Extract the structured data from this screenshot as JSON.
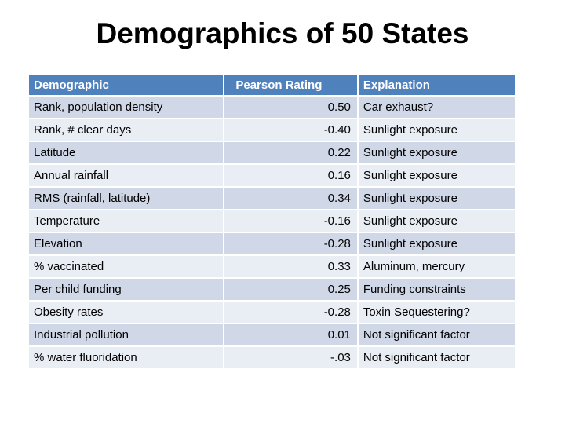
{
  "title": "Demographics of 50 States",
  "table": {
    "headers": [
      "Demographic",
      "Pearson Rating",
      "Explanation"
    ],
    "rows": [
      [
        "Rank, population density",
        "0.50",
        "Car exhaust?"
      ],
      [
        "Rank, # clear days",
        "-0.40",
        "Sunlight exposure"
      ],
      [
        "Latitude",
        "0.22",
        "Sunlight exposure"
      ],
      [
        "Annual rainfall",
        "0.16",
        "Sunlight exposure"
      ],
      [
        "RMS (rainfall, latitude)",
        "0.34",
        "Sunlight exposure"
      ],
      [
        "Temperature",
        "-0.16",
        "Sunlight exposure"
      ],
      [
        "Elevation",
        "-0.28",
        "Sunlight exposure"
      ],
      [
        "% vaccinated",
        "0.33",
        "Aluminum, mercury"
      ],
      [
        "Per child funding",
        "0.25",
        "Funding constraints"
      ],
      [
        "Obesity rates",
        "-0.28",
        "Toxin Sequestering?"
      ],
      [
        "Industrial pollution",
        "0.01",
        "Not significant factor"
      ],
      [
        "% water fluoridation",
        "-.03",
        "Not significant factor"
      ]
    ]
  }
}
